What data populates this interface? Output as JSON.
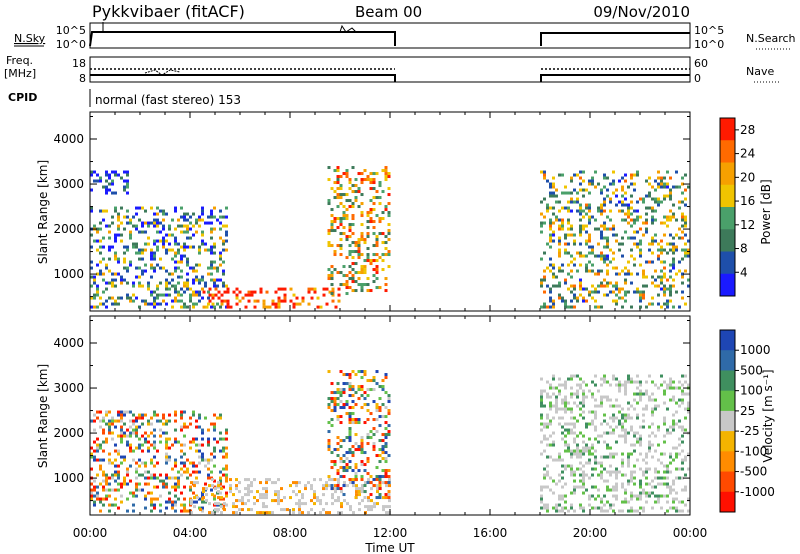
{
  "header": {
    "station": "Pykkvibaer (fitACF)",
    "beam": "Beam 00",
    "date": "09/Nov/2010"
  },
  "mode_label": "normal (fast stereo) 153",
  "noise_panel": {
    "left_label": "N.Sky",
    "right_label": "N.Search",
    "left_ticks": [
      "10^5",
      "10^0"
    ],
    "right_ticks": [
      "10^5",
      "10^0"
    ]
  },
  "freq_panel": {
    "left_label_1": "Freq.",
    "left_label_2": "[MHz]",
    "right_label": "Nave",
    "left_ticks": [
      "18",
      "8"
    ],
    "right_ticks": [
      "60",
      "0"
    ]
  },
  "cpid_label": "CPID",
  "x_axis": {
    "title": "Time UT",
    "ticks": [
      "00:00",
      "04:00",
      "08:00",
      "12:00",
      "16:00",
      "20:00",
      "00:00"
    ]
  },
  "colors": {
    "power_scale": [
      "#1a1aff",
      "#1e4faa",
      "#3d7a5a",
      "#4aa06a",
      "#f0c400",
      "#f6a000",
      "#ff6a00",
      "#ff1a00"
    ],
    "velocity_scale": [
      "#1e46b4",
      "#2f6aa8",
      "#3f8f5f",
      "#63c049",
      "#c8c8c8",
      "#f4b400",
      "#ff8c00",
      "#ff4a00",
      "#ff1000"
    ]
  },
  "chart_data": [
    {
      "type": "heatmap",
      "title": "",
      "xlabel": "",
      "ylabel": "Slant Range [km]",
      "xlim": [
        "00:00",
        "24:00"
      ],
      "ylim": [
        180,
        4600
      ],
      "y_ticks": [
        "1000",
        "2000",
        "3000",
        "4000"
      ],
      "colorbar": {
        "label": "Power [dB]",
        "ticks": [
          "4",
          "8",
          "12",
          "16",
          "20",
          "24",
          "28"
        ],
        "range": [
          0,
          30
        ]
      },
      "regions": [
        {
          "t_start": "00:00",
          "t_end": "05:30",
          "range_km": [
            300,
            2500
          ],
          "level": "low-to-mid"
        },
        {
          "t_start": "00:00",
          "t_end": "01:30",
          "range_km": [
            2800,
            3300
          ],
          "level": "low"
        },
        {
          "t_start": "04:30",
          "t_end": "10:00",
          "range_km": [
            250,
            700
          ],
          "level": "high"
        },
        {
          "t_start": "09:30",
          "t_end": "12:00",
          "range_km": [
            600,
            3400
          ],
          "level": "mid-to-high"
        },
        {
          "t_start": "18:00",
          "t_end": "24:00",
          "range_km": [
            300,
            3300
          ],
          "level": "low-to-high"
        }
      ],
      "data_gap": [
        "12:00",
        "18:00"
      ]
    },
    {
      "type": "heatmap",
      "title": "",
      "xlabel": "Time UT",
      "ylabel": "Slant Range [km]",
      "xlim": [
        "00:00",
        "24:00"
      ],
      "ylim": [
        180,
        4600
      ],
      "y_ticks": [
        "1000",
        "2000",
        "3000",
        "4000"
      ],
      "colorbar": {
        "label": "Velocity [m s⁻¹]",
        "ticks": [
          "1000",
          "500",
          "100",
          "25",
          "-25",
          "-100",
          "-500",
          "-1000"
        ]
      },
      "regions": [
        {
          "t_start": "00:00",
          "t_end": "05:30",
          "range_km": [
            300,
            2500
          ],
          "velocity": "mixed"
        },
        {
          "t_start": "04:00",
          "t_end": "12:00",
          "range_km": [
            250,
            1000
          ],
          "velocity": "near-zero"
        },
        {
          "t_start": "09:30",
          "t_end": "12:00",
          "range_km": [
            600,
            3400
          ],
          "velocity": "mixed"
        },
        {
          "t_start": "18:00",
          "t_end": "24:00",
          "range_km": [
            300,
            3300
          ],
          "velocity": "near-zero-to-positive"
        }
      ],
      "data_gap": [
        "12:00",
        "18:00"
      ]
    }
  ]
}
